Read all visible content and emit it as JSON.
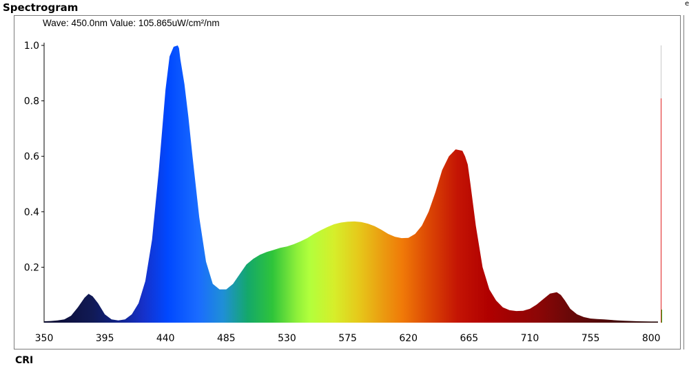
{
  "header": {
    "title": "Spectrogram",
    "edge_char": "e"
  },
  "readout": {
    "text": "Wave: 450.0nm Value: 105.865uW/cm²/nm"
  },
  "footer": {
    "partial_title": "CRI"
  },
  "chart_data": {
    "type": "area",
    "title": "Spectrogram",
    "xlabel": "",
    "ylabel": "",
    "xlim": [
      350,
      805
    ],
    "ylim": [
      0,
      1.0
    ],
    "x_ticks": [
      350,
      395,
      440,
      485,
      530,
      575,
      620,
      665,
      710,
      755,
      800
    ],
    "y_ticks": [
      0.2,
      0.4,
      0.6,
      0.8,
      1.0
    ],
    "y_tick_labels": [
      "0.2",
      "0.4",
      "0.6",
      "0.8",
      "1.0"
    ],
    "grid": false,
    "fill": "spectral-colors",
    "cursor_wavelength": 450.0,
    "series": [
      {
        "x": [
          350,
          355,
          360,
          365,
          370,
          375,
          380,
          383,
          386,
          390,
          395,
          400,
          405,
          410,
          415,
          420,
          425,
          430,
          435,
          440,
          443,
          446,
          449,
          450,
          451,
          454,
          457,
          460,
          465,
          470,
          475,
          480,
          485,
          490,
          495,
          500,
          505,
          510,
          515,
          520,
          525,
          530,
          535,
          540,
          545,
          550,
          555,
          560,
          565,
          570,
          575,
          580,
          585,
          590,
          595,
          600,
          605,
          610,
          615,
          620,
          625,
          630,
          635,
          640,
          645,
          650,
          655,
          660,
          662,
          664,
          666,
          670,
          675,
          680,
          685,
          690,
          695,
          700,
          705,
          710,
          715,
          720,
          725,
          730,
          733,
          736,
          740,
          745,
          750,
          755,
          760,
          765,
          770,
          775,
          780,
          790,
          800,
          805
        ],
        "y": [
          0.005,
          0.006,
          0.008,
          0.012,
          0.025,
          0.055,
          0.09,
          0.104,
          0.095,
          0.07,
          0.03,
          0.012,
          0.008,
          0.012,
          0.03,
          0.07,
          0.15,
          0.3,
          0.55,
          0.84,
          0.96,
          0.995,
          1.0,
          0.99,
          0.95,
          0.86,
          0.74,
          0.6,
          0.38,
          0.22,
          0.14,
          0.12,
          0.12,
          0.14,
          0.175,
          0.21,
          0.23,
          0.245,
          0.255,
          0.262,
          0.27,
          0.275,
          0.283,
          0.293,
          0.305,
          0.32,
          0.333,
          0.345,
          0.355,
          0.361,
          0.364,
          0.365,
          0.363,
          0.357,
          0.348,
          0.335,
          0.32,
          0.31,
          0.305,
          0.306,
          0.32,
          0.35,
          0.4,
          0.47,
          0.55,
          0.6,
          0.625,
          0.62,
          0.6,
          0.57,
          0.5,
          0.35,
          0.2,
          0.12,
          0.08,
          0.055,
          0.045,
          0.042,
          0.043,
          0.05,
          0.065,
          0.085,
          0.105,
          0.11,
          0.1,
          0.08,
          0.05,
          0.03,
          0.02,
          0.015,
          0.013,
          0.012,
          0.01,
          0.008,
          0.007,
          0.005,
          0.004,
          0.004
        ]
      }
    ]
  }
}
